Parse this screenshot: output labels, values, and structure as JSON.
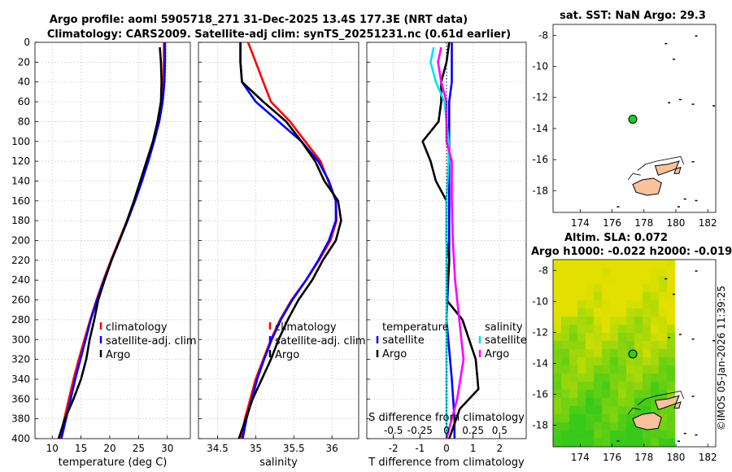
{
  "header": {
    "line1": "Argo profile: aoml 5905718_271 31-Dec-2025 13.4S 177.3E (NRT data)",
    "line2": "Climatology: CARS2009. Satellite-adj clim: synTS_20251231.nc (0.61d earlier)"
  },
  "colors": {
    "climatology": "#ff0000",
    "satellite": "#0000ff",
    "argo": "#000000",
    "salinity_sat": "#00e5ee",
    "salinity_argo": "#ff00ff",
    "land": "#f7c29c",
    "sla_light": "#e3e000",
    "sla_dark": "#36c91a"
  },
  "chart_data": [
    {
      "type": "line",
      "name": "temperature-profile",
      "xlabel": "temperature (deg C)",
      "ylabel": "",
      "xlim": [
        7,
        34
      ],
      "ylim": [
        400,
        0
      ],
      "xticks": [
        10,
        15,
        20,
        25,
        30
      ],
      "yticks": [
        0,
        20,
        40,
        60,
        80,
        100,
        120,
        140,
        160,
        180,
        200,
        220,
        240,
        260,
        280,
        300,
        320,
        340,
        360,
        380,
        400
      ],
      "grid": true,
      "legend_position": "lower-center",
      "series": [
        {
          "name": "climatology",
          "color": "#ff0000",
          "points": [
            [
              29.4,
              0
            ],
            [
              29.4,
              20
            ],
            [
              29.3,
              40
            ],
            [
              29.1,
              60
            ],
            [
              28.5,
              80
            ],
            [
              27.6,
              100
            ],
            [
              26.6,
              120
            ],
            [
              25.5,
              140
            ],
            [
              24.3,
              160
            ],
            [
              23.0,
              180
            ],
            [
              21.6,
              200
            ],
            [
              20.2,
              220
            ],
            [
              18.9,
              240
            ],
            [
              17.7,
              260
            ],
            [
              16.6,
              280
            ],
            [
              15.6,
              300
            ],
            [
              14.6,
              320
            ],
            [
              13.7,
              340
            ],
            [
              12.9,
              360
            ],
            [
              12.1,
              380
            ],
            [
              11.3,
              400
            ]
          ]
        },
        {
          "name": "satellite-adj. clim",
          "color": "#0000ff",
          "points": [
            [
              29.6,
              0
            ],
            [
              29.6,
              20
            ],
            [
              29.5,
              40
            ],
            [
              29.2,
              60
            ],
            [
              28.6,
              80
            ],
            [
              27.7,
              100
            ],
            [
              26.7,
              120
            ],
            [
              25.6,
              140
            ],
            [
              24.4,
              160
            ],
            [
              23.1,
              180
            ],
            [
              21.7,
              200
            ],
            [
              20.3,
              220
            ],
            [
              19.0,
              240
            ],
            [
              17.8,
              260
            ],
            [
              16.7,
              280
            ],
            [
              15.8,
              300
            ],
            [
              14.9,
              320
            ],
            [
              14.0,
              340
            ],
            [
              13.2,
              360
            ],
            [
              12.4,
              380
            ],
            [
              11.6,
              400
            ]
          ]
        },
        {
          "name": "Argo",
          "color": "#000000",
          "points": [
            [
              28.7,
              5
            ],
            [
              28.9,
              20
            ],
            [
              29.0,
              40
            ],
            [
              28.9,
              60
            ],
            [
              28.3,
              80
            ],
            [
              27.5,
              100
            ],
            [
              26.4,
              120
            ],
            [
              25.3,
              140
            ],
            [
              24.2,
              160
            ],
            [
              23.0,
              180
            ],
            [
              21.7,
              200
            ],
            [
              20.3,
              220
            ],
            [
              19.1,
              240
            ],
            [
              18.0,
              260
            ],
            [
              17.3,
              280
            ],
            [
              16.5,
              300
            ],
            [
              15.9,
              320
            ],
            [
              15.0,
              340
            ],
            [
              13.7,
              360
            ],
            [
              12.2,
              380
            ],
            [
              11.1,
              400
            ]
          ]
        }
      ],
      "legend": [
        "climatology",
        "satellite-adj. clim",
        "Argo"
      ]
    },
    {
      "type": "line",
      "name": "salinity-profile",
      "xlabel": "salinity",
      "ylabel": "",
      "xlim": [
        34.25,
        36.35
      ],
      "ylim": [
        400,
        0
      ],
      "xticks": [
        34.5,
        35,
        35.5,
        36
      ],
      "yticks": [
        0,
        20,
        40,
        60,
        80,
        100,
        120,
        140,
        160,
        180,
        200,
        220,
        240,
        260,
        280,
        300,
        320,
        340,
        360,
        380,
        400
      ],
      "grid": true,
      "legend_position": "lower-center",
      "series": [
        {
          "name": "climatology",
          "color": "#ff0000",
          "points": [
            [
              34.9,
              0
            ],
            [
              35.0,
              20
            ],
            [
              35.1,
              40
            ],
            [
              35.2,
              60
            ],
            [
              35.45,
              80
            ],
            [
              35.65,
              100
            ],
            [
              35.85,
              120
            ],
            [
              35.95,
              140
            ],
            [
              36.05,
              160
            ],
            [
              36.06,
              180
            ],
            [
              35.98,
              200
            ],
            [
              35.83,
              220
            ],
            [
              35.66,
              240
            ],
            [
              35.47,
              260
            ],
            [
              35.32,
              280
            ],
            [
              35.2,
              300
            ],
            [
              35.1,
              320
            ],
            [
              35.0,
              340
            ],
            [
              34.93,
              360
            ],
            [
              34.86,
              380
            ],
            [
              34.81,
              400
            ]
          ]
        },
        {
          "name": "satellite-adj. clim",
          "color": "#0000ff",
          "points": [
            [
              34.8,
              0
            ],
            [
              34.8,
              20
            ],
            [
              34.82,
              40
            ],
            [
              35.0,
              60
            ],
            [
              35.3,
              80
            ],
            [
              35.6,
              100
            ],
            [
              35.82,
              120
            ],
            [
              35.96,
              140
            ],
            [
              36.05,
              160
            ],
            [
              36.05,
              180
            ],
            [
              35.96,
              200
            ],
            [
              35.82,
              220
            ],
            [
              35.66,
              240
            ],
            [
              35.48,
              260
            ],
            [
              35.33,
              280
            ],
            [
              35.21,
              300
            ],
            [
              35.11,
              320
            ],
            [
              35.02,
              340
            ],
            [
              34.95,
              360
            ],
            [
              34.88,
              380
            ],
            [
              34.83,
              400
            ]
          ]
        },
        {
          "name": "Argo",
          "color": "#000000",
          "points": [
            [
              34.8,
              0
            ],
            [
              34.8,
              20
            ],
            [
              34.82,
              40
            ],
            [
              35.1,
              60
            ],
            [
              35.4,
              80
            ],
            [
              35.6,
              100
            ],
            [
              35.78,
              120
            ],
            [
              35.9,
              140
            ],
            [
              36.08,
              160
            ],
            [
              36.12,
              180
            ],
            [
              36.05,
              200
            ],
            [
              35.88,
              220
            ],
            [
              35.74,
              240
            ],
            [
              35.56,
              260
            ],
            [
              35.42,
              280
            ],
            [
              35.3,
              300
            ],
            [
              35.2,
              320
            ],
            [
              35.08,
              340
            ],
            [
              34.96,
              360
            ],
            [
              34.87,
              380
            ],
            [
              34.78,
              400
            ]
          ]
        }
      ],
      "legend": [
        "climatology",
        "satellite-adj. clim",
        "Argo"
      ]
    },
    {
      "type": "line",
      "name": "difference-profile",
      "xlabel": "T difference from climatology",
      "x2label": "S difference from climatology",
      "xlim": [
        -3,
        3
      ],
      "x2lim": [
        -0.75,
        0.75
      ],
      "ylim": [
        400,
        0
      ],
      "xticks": [
        -2,
        -1,
        0,
        1,
        2
      ],
      "x2ticks": [
        -0.5,
        -0.25,
        0,
        0.25,
        0.5
      ],
      "x2ticklabels": [
        "-0.5",
        "-0.25",
        "0",
        "0.25",
        "0.5"
      ],
      "yticks": [
        0,
        20,
        40,
        60,
        80,
        100,
        120,
        140,
        160,
        180,
        200,
        220,
        240,
        260,
        280,
        300,
        320,
        340,
        360,
        380,
        400
      ],
      "grid": true,
      "series": [
        {
          "name": "temperature satellite",
          "color": "#0000ff",
          "points": [
            [
              0.2,
              0
            ],
            [
              0.2,
              20
            ],
            [
              0.2,
              40
            ],
            [
              0.1,
              60
            ],
            [
              0.1,
              100
            ],
            [
              0.1,
              160
            ],
            [
              0.1,
              220
            ],
            [
              0.0,
              280
            ],
            [
              0.2,
              340
            ],
            [
              0.3,
              380
            ],
            [
              0.3,
              400
            ]
          ]
        },
        {
          "name": "temperature Argo",
          "color": "#000000",
          "points": [
            [
              0.1,
              0
            ],
            [
              0.0,
              20
            ],
            [
              -0.2,
              40
            ],
            [
              -0.2,
              60
            ],
            [
              -0.3,
              80
            ],
            [
              -0.9,
              100
            ],
            [
              -0.6,
              120
            ],
            [
              -0.4,
              140
            ],
            [
              0.0,
              160
            ],
            [
              0.0,
              200
            ],
            [
              0.1,
              220
            ],
            [
              0.0,
              260
            ],
            [
              0.6,
              280
            ],
            [
              1.1,
              320
            ],
            [
              1.2,
              350
            ],
            [
              0.5,
              370
            ],
            [
              0.1,
              400
            ]
          ]
        },
        {
          "name": "salinity satellite",
          "color": "#00e5ee",
          "points": [
            [
              -0.12,
              5
            ],
            [
              -0.15,
              20
            ],
            [
              -0.1,
              40
            ],
            [
              -0.02,
              60
            ],
            [
              0.0,
              80
            ],
            [
              0.02,
              100
            ],
            [
              0.02,
              120
            ],
            [
              0.0,
              160
            ],
            [
              0.0,
              220
            ],
            [
              0.0,
              280
            ],
            [
              0.0,
              340
            ],
            [
              0.0,
              400
            ]
          ]
        },
        {
          "name": "salinity Argo",
          "color": "#ff00ff",
          "points": [
            [
              -0.05,
              5
            ],
            [
              -0.08,
              20
            ],
            [
              -0.05,
              40
            ],
            [
              0.0,
              60
            ],
            [
              0.0,
              100
            ],
            [
              0.05,
              120
            ],
            [
              0.05,
              160
            ],
            [
              0.06,
              200
            ],
            [
              0.08,
              240
            ],
            [
              0.12,
              280
            ],
            [
              0.16,
              320
            ],
            [
              0.1,
              360
            ],
            [
              0.0,
              400
            ]
          ]
        }
      ],
      "legend_left_title": "temperature",
      "legend_left": [
        "satellite",
        "Argo"
      ],
      "legend_right_title": "salinity",
      "legend_right": [
        "satellite",
        "Argo"
      ]
    },
    {
      "type": "map",
      "name": "sst-map",
      "title": "sat. SST: NaN Argo: 29.3",
      "xlim": [
        172.3,
        182.5
      ],
      "ylim": [
        -19.4,
        -7.3
      ],
      "xticks": [
        174,
        176,
        178,
        180,
        182
      ],
      "yticks": [
        -8,
        -10,
        -12,
        -14,
        -16,
        -18
      ],
      "argo_position": [
        177.3,
        -13.4
      ]
    },
    {
      "type": "heatmap",
      "name": "sla-map",
      "title_line1": "Altim. SLA: 0.072",
      "title_line2": "Argo h1000: -0.022 h2000: -0.019",
      "xlim": [
        172.3,
        182.5
      ],
      "ylim": [
        -19.4,
        -7.3
      ],
      "xticks": [
        174,
        176,
        178,
        180,
        182
      ],
      "yticks": [
        -8,
        -10,
        -12,
        -14,
        -16,
        -18
      ],
      "argo_position": [
        177.3,
        -13.4
      ]
    }
  ],
  "footer": {
    "stamp": "©IMOS 05-Jan-2026 11:39:25"
  }
}
